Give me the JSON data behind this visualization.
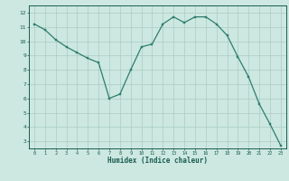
{
  "x": [
    0,
    1,
    2,
    3,
    4,
    5,
    6,
    7,
    8,
    9,
    10,
    11,
    12,
    13,
    14,
    15,
    16,
    17,
    18,
    19,
    20,
    21,
    22,
    23
  ],
  "y": [
    11.2,
    10.8,
    10.1,
    9.6,
    9.2,
    8.8,
    8.5,
    6.0,
    6.3,
    8.0,
    9.6,
    9.8,
    11.2,
    11.7,
    11.3,
    11.7,
    11.7,
    11.2,
    10.4,
    8.9,
    7.5,
    5.6,
    4.2,
    2.7
  ],
  "line_color": "#2e7d6e",
  "marker_color": "#2e7d6e",
  "bg_color": "#cce8e0",
  "grid_color": "#aaccc4",
  "xlabel": "Humidex (Indice chaleur)",
  "xlabel_color": "#1a5c50",
  "tick_color": "#1a5c50",
  "ylim": [
    2.5,
    12.5
  ],
  "xlim": [
    -0.5,
    23.5
  ],
  "yticks": [
    3,
    4,
    5,
    6,
    7,
    8,
    9,
    10,
    11,
    12
  ],
  "xticks": [
    0,
    1,
    2,
    3,
    4,
    5,
    6,
    7,
    8,
    9,
    10,
    11,
    12,
    13,
    14,
    15,
    16,
    17,
    18,
    19,
    20,
    21,
    22,
    23
  ],
  "axis_color": "#1a5c50"
}
